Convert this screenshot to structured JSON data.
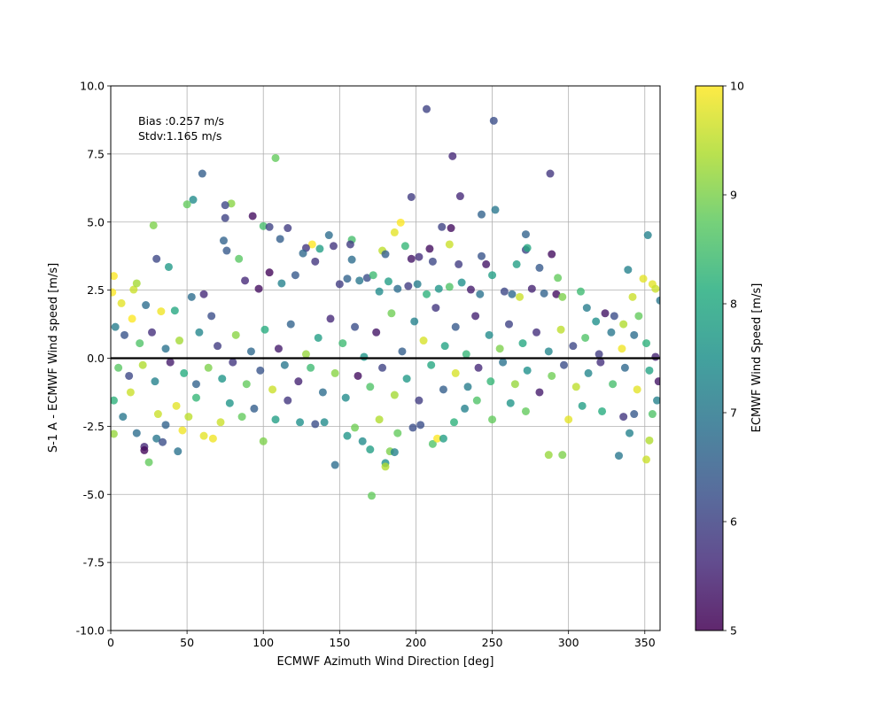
{
  "chart_data": {
    "type": "scatter",
    "title": "",
    "xlabel": "ECMWF Azimuth Wind Direction [deg]",
    "ylabel": "S-1 A - ECMWF Wind speed [m/s]",
    "xlim": [
      0,
      360
    ],
    "ylim": [
      -10,
      10
    ],
    "x_ticks": [
      0,
      50,
      100,
      150,
      200,
      250,
      300,
      350
    ],
    "y_ticks": [
      -10.0,
      -7.5,
      -5.0,
      -2.5,
      0.0,
      2.5,
      5.0,
      7.5,
      10.0
    ],
    "grid": true,
    "reference_line_y": 0,
    "annotations": [
      "Bias :0.257 m/s",
      "Stdv:1.165 m/s"
    ],
    "colorbar": {
      "label": "ECMWF Wind Speed [m/s]",
      "range": [
        5,
        10
      ],
      "ticks": [
        5,
        6,
        7,
        8,
        9,
        10
      ],
      "colormap": "viridis"
    },
    "point_alpha": 0.8,
    "points": [
      [
        207,
        9.15,
        6.0
      ],
      [
        251,
        8.72,
        6.2
      ],
      [
        224,
        7.42,
        5.6
      ],
      [
        108,
        7.35,
        8.8
      ],
      [
        288,
        6.78,
        5.8
      ],
      [
        60,
        6.78,
        6.5
      ],
      [
        229,
        5.95,
        5.6
      ],
      [
        197,
        5.92,
        5.9
      ],
      [
        54,
        5.82,
        7.4
      ],
      [
        50,
        5.65,
        8.8
      ],
      [
        79,
        5.68,
        9.1
      ],
      [
        75,
        5.62,
        6.1
      ],
      [
        243,
        5.28,
        6.6
      ],
      [
        252,
        5.45,
        7.0
      ],
      [
        75,
        5.15,
        6.0
      ],
      [
        93,
        5.22,
        5.2
      ],
      [
        190,
        4.98,
        10.0
      ],
      [
        100,
        4.85,
        8.5
      ],
      [
        104,
        4.82,
        6.0
      ],
      [
        116,
        4.78,
        5.9
      ],
      [
        217,
        4.82,
        6.0
      ],
      [
        223,
        4.78,
        5.2
      ],
      [
        28,
        4.88,
        9.0
      ],
      [
        143,
        4.52,
        6.8
      ],
      [
        158,
        4.35,
        8.5
      ],
      [
        157,
        4.18,
        5.9
      ],
      [
        132,
        4.18,
        10.0
      ],
      [
        111,
        4.38,
        6.5
      ],
      [
        74,
        4.32,
        6.6
      ],
      [
        222,
        4.18,
        9.6
      ],
      [
        272,
        4.55,
        6.6
      ],
      [
        352,
        4.52,
        7.2
      ],
      [
        209,
        4.02,
        5.2
      ],
      [
        193,
        4.12,
        8.3
      ],
      [
        178,
        3.95,
        9.5
      ],
      [
        128,
        4.05,
        5.8
      ],
      [
        137,
        4.02,
        7.8
      ],
      [
        186,
        4.62,
        9.8
      ],
      [
        146,
        4.12,
        5.8
      ],
      [
        272,
        3.98,
        6.0
      ],
      [
        273,
        4.05,
        8.0
      ],
      [
        289,
        3.82,
        5.2
      ],
      [
        243,
        3.75,
        6.3
      ],
      [
        180,
        3.82,
        6.5
      ],
      [
        30,
        3.65,
        6.1
      ],
      [
        38,
        3.35,
        7.7
      ],
      [
        76,
        3.95,
        6.4
      ],
      [
        84,
        3.65,
        8.7
      ],
      [
        126,
        3.85,
        6.7
      ],
      [
        134,
        3.55,
        5.8
      ],
      [
        158,
        3.62,
        6.8
      ],
      [
        197,
        3.65,
        5.3
      ],
      [
        202,
        3.72,
        5.7
      ],
      [
        211,
        3.55,
        6.1
      ],
      [
        228,
        3.45,
        5.9
      ],
      [
        246,
        3.45,
        5.3
      ],
      [
        266,
        3.45,
        7.8
      ],
      [
        281,
        3.32,
        6.4
      ],
      [
        293,
        2.95,
        8.8
      ],
      [
        339,
        3.25,
        7.2
      ],
      [
        349,
        2.92,
        9.8
      ],
      [
        355,
        2.72,
        9.8
      ],
      [
        357,
        2.55,
        9.6
      ],
      [
        360,
        2.12,
        7.0
      ],
      [
        2,
        3.02,
        10.0
      ],
      [
        1,
        2.42,
        10.0
      ],
      [
        15,
        2.52,
        9.6
      ],
      [
        17,
        2.75,
        9.3
      ],
      [
        14,
        1.45,
        10.0
      ],
      [
        7,
        2.02,
        9.8
      ],
      [
        23,
        1.95,
        6.8
      ],
      [
        33,
        1.72,
        9.9
      ],
      [
        42,
        1.75,
        8.0
      ],
      [
        53,
        2.25,
        6.8
      ],
      [
        61,
        2.35,
        5.6
      ],
      [
        66,
        1.55,
        6.2
      ],
      [
        88,
        2.85,
        5.6
      ],
      [
        97,
        2.55,
        5.2
      ],
      [
        104,
        3.15,
        5.1
      ],
      [
        112,
        2.75,
        7.2
      ],
      [
        121,
        3.05,
        6.4
      ],
      [
        150,
        2.72,
        5.9
      ],
      [
        155,
        2.92,
        6.6
      ],
      [
        163,
        2.85,
        7.0
      ],
      [
        168,
        2.95,
        6.2
      ],
      [
        172,
        3.05,
        8.4
      ],
      [
        176,
        2.45,
        7.4
      ],
      [
        182,
        2.82,
        7.8
      ],
      [
        188,
        2.55,
        6.8
      ],
      [
        195,
        2.65,
        5.9
      ],
      [
        201,
        2.72,
        7.1
      ],
      [
        207,
        2.35,
        8.2
      ],
      [
        215,
        2.55,
        7.6
      ],
      [
        222,
        2.62,
        8.6
      ],
      [
        230,
        2.78,
        7.5
      ],
      [
        236,
        2.52,
        5.4
      ],
      [
        242,
        2.35,
        6.9
      ],
      [
        250,
        3.05,
        7.8
      ],
      [
        258,
        2.45,
        6.1
      ],
      [
        263,
        2.35,
        6.7
      ],
      [
        268,
        2.25,
        9.6
      ],
      [
        276,
        2.55,
        5.5
      ],
      [
        284,
        2.38,
        6.6
      ],
      [
        292,
        2.35,
        5.2
      ],
      [
        296,
        2.25,
        9.0
      ],
      [
        308,
        2.45,
        8.4
      ],
      [
        312,
        1.85,
        7.1
      ],
      [
        318,
        1.35,
        7.5
      ],
      [
        324,
        1.65,
        5.3
      ],
      [
        330,
        1.55,
        6.2
      ],
      [
        336,
        1.25,
        9.4
      ],
      [
        342,
        2.25,
        9.6
      ],
      [
        346,
        1.55,
        8.8
      ],
      [
        3,
        1.15,
        7.1
      ],
      [
        9,
        0.85,
        6.3
      ],
      [
        19,
        0.55,
        8.6
      ],
      [
        27,
        0.95,
        5.7
      ],
      [
        36,
        0.35,
        6.9
      ],
      [
        45,
        0.65,
        9.3
      ],
      [
        58,
        0.95,
        7.3
      ],
      [
        70,
        0.45,
        5.9
      ],
      [
        82,
        0.85,
        9.1
      ],
      [
        92,
        0.25,
        6.7
      ],
      [
        101,
        1.05,
        8.1
      ],
      [
        110,
        0.35,
        5.4
      ],
      [
        118,
        1.25,
        6.6
      ],
      [
        128,
        0.15,
        9.2
      ],
      [
        136,
        0.75,
        7.8
      ],
      [
        144,
        1.45,
        5.6
      ],
      [
        152,
        0.55,
        8.4
      ],
      [
        160,
        1.15,
        6.2
      ],
      [
        166,
        0.05,
        7.6
      ],
      [
        174,
        0.95,
        5.3
      ],
      [
        184,
        1.65,
        8.9
      ],
      [
        191,
        0.25,
        6.5
      ],
      [
        199,
        1.35,
        7.2
      ],
      [
        205,
        0.65,
        9.7
      ],
      [
        213,
        1.85,
        5.8
      ],
      [
        219,
        0.45,
        7.9
      ],
      [
        226,
        1.15,
        6.4
      ],
      [
        233,
        0.15,
        8.3
      ],
      [
        239,
        1.55,
        5.5
      ],
      [
        248,
        0.85,
        7.4
      ],
      [
        255,
        0.35,
        9.0
      ],
      [
        261,
        1.25,
        6.0
      ],
      [
        270,
        0.55,
        8.0
      ],
      [
        279,
        0.95,
        5.7
      ],
      [
        287,
        0.25,
        7.3
      ],
      [
        295,
        1.05,
        9.5
      ],
      [
        303,
        0.45,
        6.1
      ],
      [
        311,
        0.75,
        8.6
      ],
      [
        320,
        0.15,
        5.9
      ],
      [
        328,
        0.95,
        7.0
      ],
      [
        335,
        0.35,
        9.9
      ],
      [
        343,
        0.85,
        6.8
      ],
      [
        351,
        0.55,
        8.2
      ],
      [
        357,
        0.05,
        5.5
      ],
      [
        5,
        -0.35,
        8.7
      ],
      [
        12,
        -0.65,
        6.1
      ],
      [
        21,
        -0.25,
        9.4
      ],
      [
        29,
        -0.85,
        7.2
      ],
      [
        39,
        -0.15,
        5.4
      ],
      [
        48,
        -0.55,
        8.1
      ],
      [
        56,
        -0.95,
        6.6
      ],
      [
        64,
        -0.35,
        9.0
      ],
      [
        73,
        -0.75,
        7.6
      ],
      [
        80,
        -0.15,
        5.8
      ],
      [
        89,
        -0.95,
        8.8
      ],
      [
        98,
        -0.45,
        6.3
      ],
      [
        106,
        -1.15,
        9.6
      ],
      [
        114,
        -0.25,
        7.0
      ],
      [
        123,
        -0.85,
        5.5
      ],
      [
        131,
        -0.35,
        8.4
      ],
      [
        139,
        -1.25,
        6.8
      ],
      [
        147,
        -0.55,
        9.1
      ],
      [
        154,
        -1.45,
        7.4
      ],
      [
        162,
        -0.65,
        5.2
      ],
      [
        170,
        -1.05,
        8.6
      ],
      [
        178,
        -0.35,
        6.0
      ],
      [
        186,
        -1.35,
        9.3
      ],
      [
        194,
        -0.75,
        7.7
      ],
      [
        202,
        -1.55,
        5.9
      ],
      [
        210,
        -0.25,
        8.0
      ],
      [
        218,
        -1.15,
        6.5
      ],
      [
        226,
        -0.55,
        9.7
      ],
      [
        234,
        -1.05,
        7.1
      ],
      [
        241,
        -0.35,
        5.6
      ],
      [
        249,
        -0.85,
        8.3
      ],
      [
        257,
        -0.15,
        6.9
      ],
      [
        265,
        -0.95,
        9.2
      ],
      [
        273,
        -0.45,
        7.5
      ],
      [
        281,
        -1.25,
        5.4
      ],
      [
        289,
        -0.65,
        8.9
      ],
      [
        297,
        -0.25,
        6.2
      ],
      [
        305,
        -1.05,
        9.5
      ],
      [
        313,
        -0.55,
        7.3
      ],
      [
        321,
        -0.15,
        5.7
      ],
      [
        329,
        -0.95,
        8.5
      ],
      [
        337,
        -0.35,
        6.7
      ],
      [
        345,
        -1.15,
        9.8
      ],
      [
        353,
        -0.45,
        7.9
      ],
      [
        359,
        -0.85,
        5.3
      ],
      [
        2,
        -1.55,
        8.2
      ],
      [
        8,
        -2.15,
        7.0
      ],
      [
        2,
        -2.78,
        9.2
      ],
      [
        13,
        -1.25,
        9.6
      ],
      [
        17,
        -2.75,
        6.8
      ],
      [
        22,
        -3.25,
        5.6
      ],
      [
        22,
        -3.38,
        5.1
      ],
      [
        25,
        -3.82,
        8.8
      ],
      [
        30,
        -2.95,
        7.0
      ],
      [
        34,
        -3.08,
        6.2
      ],
      [
        31,
        -2.05,
        9.6
      ],
      [
        36,
        -2.45,
        6.6
      ],
      [
        43,
        -1.75,
        9.8
      ],
      [
        44,
        -3.42,
        6.9
      ],
      [
        47,
        -2.65,
        9.9
      ],
      [
        51,
        -2.15,
        9.5
      ],
      [
        56,
        -1.45,
        8.3
      ],
      [
        61,
        -2.85,
        9.8
      ],
      [
        67,
        -2.95,
        9.9
      ],
      [
        72,
        -2.35,
        9.6
      ],
      [
        78,
        -1.65,
        7.6
      ],
      [
        86,
        -2.15,
        8.8
      ],
      [
        94,
        -1.85,
        6.5
      ],
      [
        100,
        -3.05,
        9.0
      ],
      [
        108,
        -2.25,
        7.8
      ],
      [
        116,
        -1.55,
        5.8
      ],
      [
        124,
        -2.35,
        7.5
      ],
      [
        134,
        -2.42,
        6.2
      ],
      [
        140,
        -2.35,
        7.4
      ],
      [
        147,
        -3.92,
        6.8
      ],
      [
        155,
        -2.85,
        7.6
      ],
      [
        160,
        -2.55,
        8.9
      ],
      [
        165,
        -3.05,
        7.4
      ],
      [
        170,
        -3.35,
        7.8
      ],
      [
        171,
        -5.05,
        8.8
      ],
      [
        176,
        -2.25,
        9.4
      ],
      [
        180,
        -3.85,
        7.5
      ],
      [
        180,
        -3.98,
        9.4
      ],
      [
        183,
        -3.42,
        9.0
      ],
      [
        186,
        -3.45,
        7.2
      ],
      [
        188,
        -2.75,
        8.8
      ],
      [
        198,
        -2.55,
        6.2
      ],
      [
        203,
        -2.45,
        6.2
      ],
      [
        211,
        -3.15,
        8.6
      ],
      [
        214,
        -2.95,
        10.0
      ],
      [
        218,
        -2.95,
        7.8
      ],
      [
        225,
        -2.35,
        8.2
      ],
      [
        232,
        -1.85,
        7.2
      ],
      [
        240,
        -1.55,
        8.6
      ],
      [
        250,
        -2.25,
        8.8
      ],
      [
        262,
        -1.65,
        7.6
      ],
      [
        272,
        -1.95,
        8.8
      ],
      [
        287,
        -3.55,
        9.2
      ],
      [
        296,
        -3.55,
        9.0
      ],
      [
        300,
        -2.25,
        9.8
      ],
      [
        309,
        -1.75,
        7.8
      ],
      [
        322,
        -1.95,
        8.1
      ],
      [
        333,
        -3.58,
        7.0
      ],
      [
        336,
        -2.15,
        5.8
      ],
      [
        340,
        -2.75,
        7.2
      ],
      [
        343,
        -2.05,
        6.4
      ],
      [
        351,
        -3.72,
        9.6
      ],
      [
        353,
        -3.02,
        9.4
      ],
      [
        355,
        -2.05,
        8.6
      ],
      [
        358,
        -1.55,
        7.2
      ]
    ]
  }
}
